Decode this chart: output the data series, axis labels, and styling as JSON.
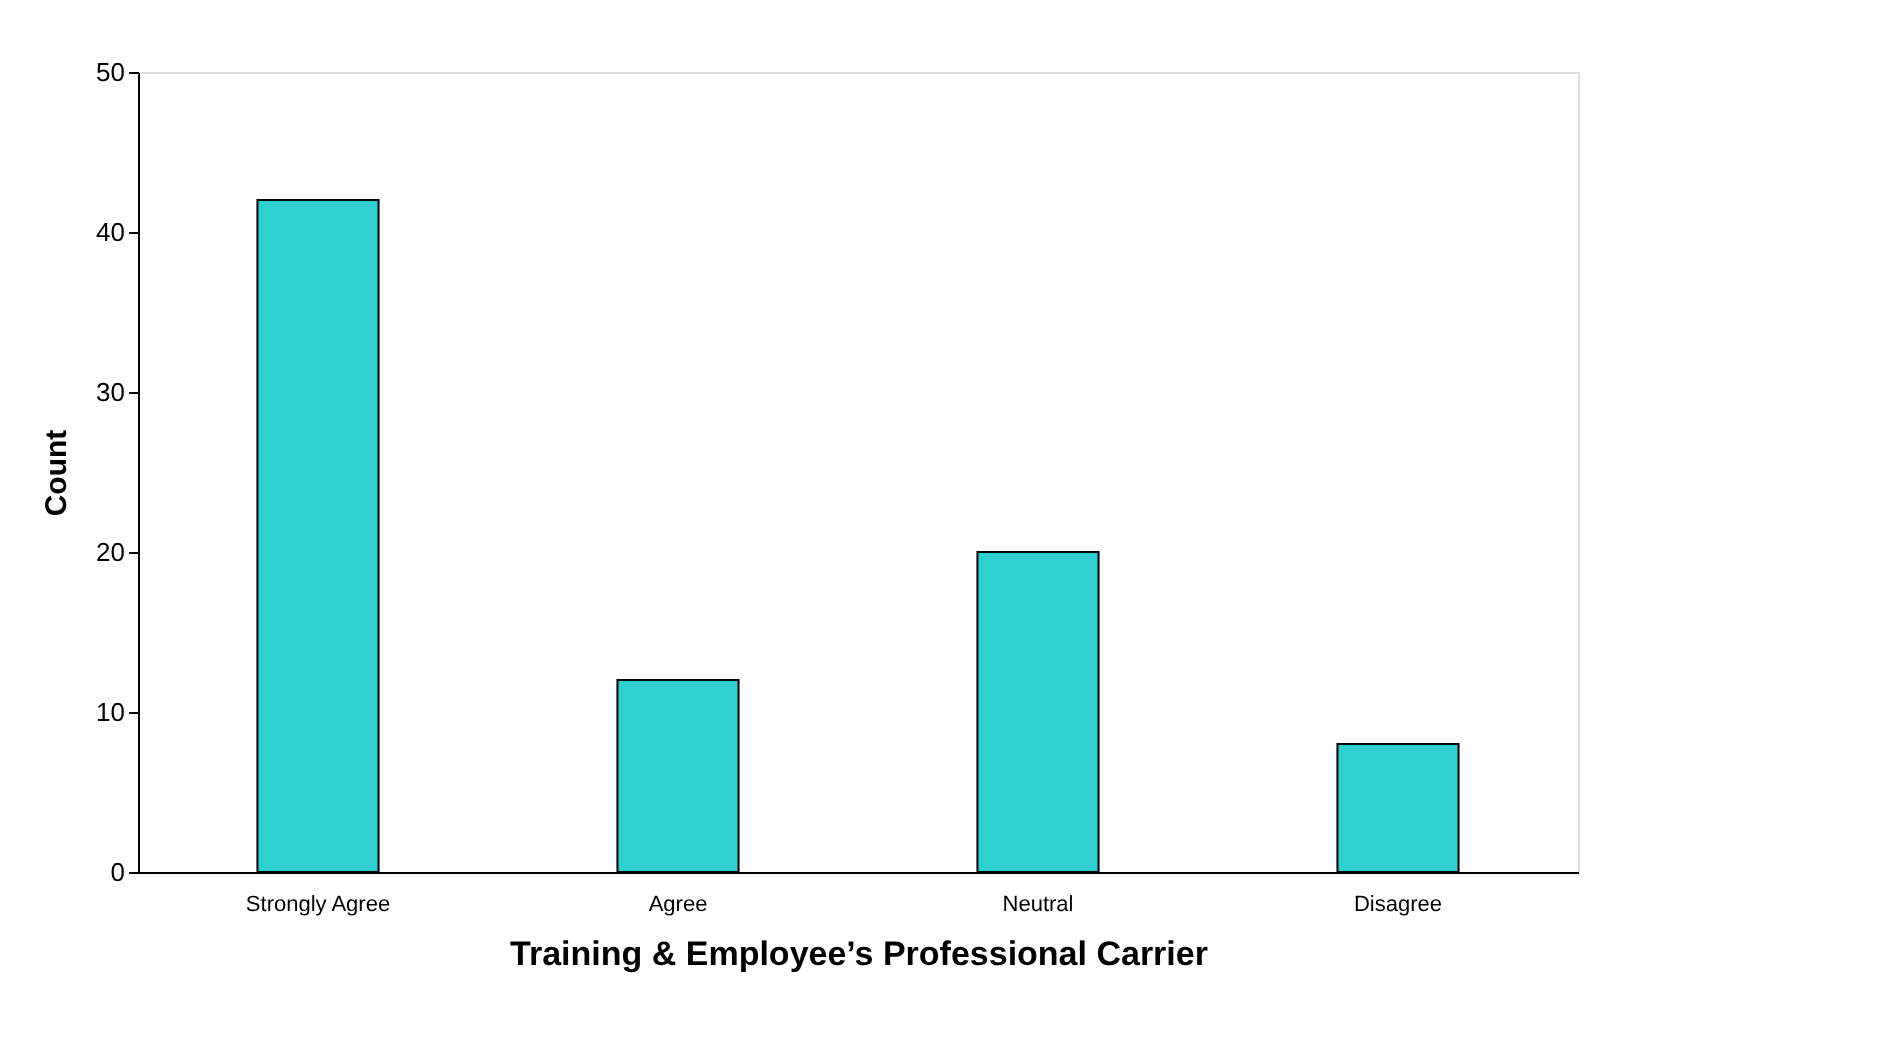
{
  "chart_data": {
    "type": "bar",
    "xlabel": "Training & Employee’s Professional Carrier",
    "ylabel": "Count",
    "categories": [
      "Strongly Agree",
      "Agree",
      "Neutral",
      "Disagree"
    ],
    "values": [
      42,
      12,
      20,
      8
    ],
    "color": "#30cfcf",
    "ylim": [
      0,
      50
    ],
    "yticks": [
      0,
      10,
      20,
      30,
      40,
      50
    ],
    "grid": false
  }
}
